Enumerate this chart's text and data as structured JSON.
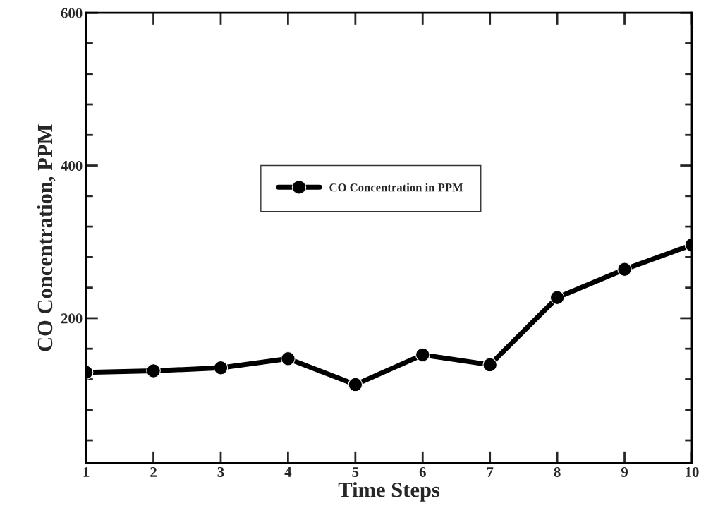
{
  "chart_data": {
    "type": "line",
    "xlabel": "Time Steps",
    "ylabel": "CO Concentration, PPM",
    "x": [
      1,
      2,
      3,
      4,
      5,
      6,
      7,
      8,
      9,
      10
    ],
    "series": [
      {
        "name": "CO Concentration in PPM",
        "color": "#000000",
        "values": [
          129,
          131,
          135,
          147,
          113,
          152,
          139,
          227,
          264,
          296
        ]
      }
    ],
    "marker": "circle",
    "line_style": "solid",
    "legend": "center",
    "grid": false,
    "xlim": [
      1,
      10
    ],
    "ylim": [
      10,
      600
    ],
    "xticks": [
      1,
      2,
      3,
      4,
      5,
      6,
      7,
      8,
      9,
      10
    ],
    "yticks": [
      {
        "value": 40,
        "label": null
      },
      {
        "value": 80,
        "label": null
      },
      {
        "value": 120,
        "label": null
      },
      {
        "value": 160,
        "label": null
      },
      200,
      {
        "value": 240,
        "label": null
      },
      {
        "value": 280,
        "label": null
      },
      {
        "value": 320,
        "label": null
      },
      {
        "value": 360,
        "label": null
      },
      400,
      {
        "value": 440,
        "label": null
      },
      {
        "value": 480,
        "label": null
      },
      {
        "value": 520,
        "label": null
      },
      {
        "value": 560,
        "label": null
      },
      600
    ]
  }
}
